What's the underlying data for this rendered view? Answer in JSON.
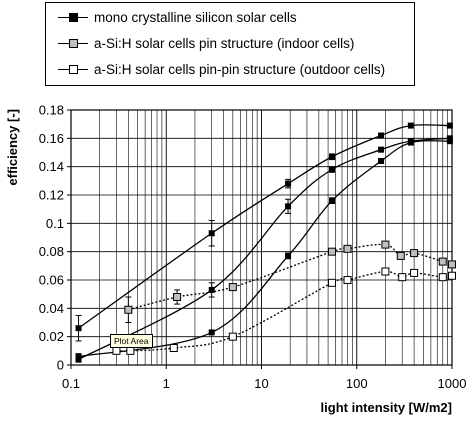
{
  "chart_data": {
    "type": "scatter",
    "xlabel": "light intensity [W/m2]",
    "ylabel": "efficiency [-]",
    "xscale": "log",
    "xlim": [
      0.1,
      1000
    ],
    "ylim": [
      0,
      0.18
    ],
    "grid": true,
    "legend_position": "top-left",
    "x_ticks": [
      "0.1",
      "1",
      "10",
      "100",
      "1000"
    ],
    "y_ticks": [
      "0",
      "0.02",
      "0.04",
      "0.06",
      "0.08",
      "0.1",
      "0.12",
      "0.14",
      "0.16",
      "0.18"
    ],
    "series": [
      {
        "name": "mono crystalline silicon solar cells",
        "marker": "filled-square",
        "marker_color": "#000000",
        "line_style": "solid",
        "points": [
          {
            "x": 0.12,
            "y": 0.026,
            "err": 0.009
          },
          {
            "x": 3.0,
            "y": 0.093,
            "err": 0.009
          },
          {
            "x": 19.0,
            "y": 0.128,
            "err": 0.003
          },
          {
            "x": 55.0,
            "y": 0.147,
            "err": 0.002
          },
          {
            "x": 180.0,
            "y": 0.162,
            "err": 0.001
          },
          {
            "x": 370.0,
            "y": 0.169,
            "err": 0.001
          },
          {
            "x": 950.0,
            "y": 0.169,
            "err": 0.001
          }
        ]
      },
      {
        "name": "",
        "marker": "filled-square",
        "marker_color": "#000000",
        "line_style": "solid",
        "points": [
          {
            "x": 0.12,
            "y": 0.004,
            "err": 0.002
          },
          {
            "x": 3.0,
            "y": 0.053,
            "err": 0.005
          },
          {
            "x": 19.0,
            "y": 0.112,
            "err": 0.005
          },
          {
            "x": 55.0,
            "y": 0.138,
            "err": 0.002
          },
          {
            "x": 180.0,
            "y": 0.152,
            "err": 0.001
          },
          {
            "x": 370.0,
            "y": 0.158,
            "err": 0.001
          },
          {
            "x": 950.0,
            "y": 0.16,
            "err": 0.001
          }
        ]
      },
      {
        "name": "",
        "marker": "filled-square",
        "marker_color": "#000000",
        "line_style": "solid",
        "points": [
          {
            "x": 0.12,
            "y": 0.006,
            "err": 0.002
          },
          {
            "x": 3.0,
            "y": 0.023,
            "err": 0.001
          },
          {
            "x": 19.0,
            "y": 0.077,
            "err": 0.002
          },
          {
            "x": 55.0,
            "y": 0.116,
            "err": 0.002
          },
          {
            "x": 180.0,
            "y": 0.144,
            "err": 0.001
          },
          {
            "x": 370.0,
            "y": 0.157,
            "err": 0.001
          },
          {
            "x": 950.0,
            "y": 0.158,
            "err": 0.001
          }
        ]
      },
      {
        "name": "a-Si:H solar cells pin structure (indoor cells)",
        "marker": "gray-square",
        "marker_color": "#bfbfbf",
        "line_style": "dotted",
        "points": [
          {
            "x": 0.4,
            "y": 0.039,
            "err": 0.009
          },
          {
            "x": 1.3,
            "y": 0.048,
            "err": 0.005
          },
          {
            "x": 5.0,
            "y": 0.055,
            "err": 0.001
          },
          {
            "x": 55.0,
            "y": 0.08,
            "err": 0.001
          },
          {
            "x": 80.0,
            "y": 0.082,
            "err": 0.001
          },
          {
            "x": 200.0,
            "y": 0.085,
            "err": 0.001
          },
          {
            "x": 290.0,
            "y": 0.077,
            "err": 0.001
          },
          {
            "x": 400.0,
            "y": 0.079,
            "err": 0.001
          },
          {
            "x": 800.0,
            "y": 0.073,
            "err": 0.001
          },
          {
            "x": 1000.0,
            "y": 0.071,
            "err": 0.001
          }
        ]
      },
      {
        "name": "a-Si:H solar cells pin-pin structure (outdoor cells)",
        "marker": "open-square",
        "marker_color": "#ffffff",
        "line_style": "dotted",
        "points": [
          {
            "x": 0.3,
            "y": 0.01,
            "err": 0.001
          },
          {
            "x": 0.42,
            "y": 0.01,
            "err": 0.001
          },
          {
            "x": 1.2,
            "y": 0.012,
            "err": 0.001
          },
          {
            "x": 5.0,
            "y": 0.02,
            "err": 0.001
          },
          {
            "x": 55.0,
            "y": 0.058,
            "err": 0.001
          },
          {
            "x": 80.0,
            "y": 0.06,
            "err": 0.001
          },
          {
            "x": 200.0,
            "y": 0.066,
            "err": 0.001
          },
          {
            "x": 300.0,
            "y": 0.062,
            "err": 0.001
          },
          {
            "x": 400.0,
            "y": 0.065,
            "err": 0.001
          },
          {
            "x": 800.0,
            "y": 0.062,
            "err": 0.001
          },
          {
            "x": 1000.0,
            "y": 0.063,
            "err": 0.001
          }
        ]
      }
    ]
  },
  "legend": {
    "items": [
      {
        "label": "mono crystalline silicon solar cells",
        "marker_color": "#000000",
        "line_style": "solid"
      },
      {
        "label": "a-Si:H solar cells pin structure (indoor cells)",
        "marker_color": "#bfbfbf",
        "line_style": "solid"
      },
      {
        "label": "a-Si:H solar cells pin-pin structure (outdoor cells)",
        "marker_color": "#ffffff",
        "line_style": "solid"
      }
    ]
  },
  "tooltip": {
    "text": "Plot Area"
  }
}
